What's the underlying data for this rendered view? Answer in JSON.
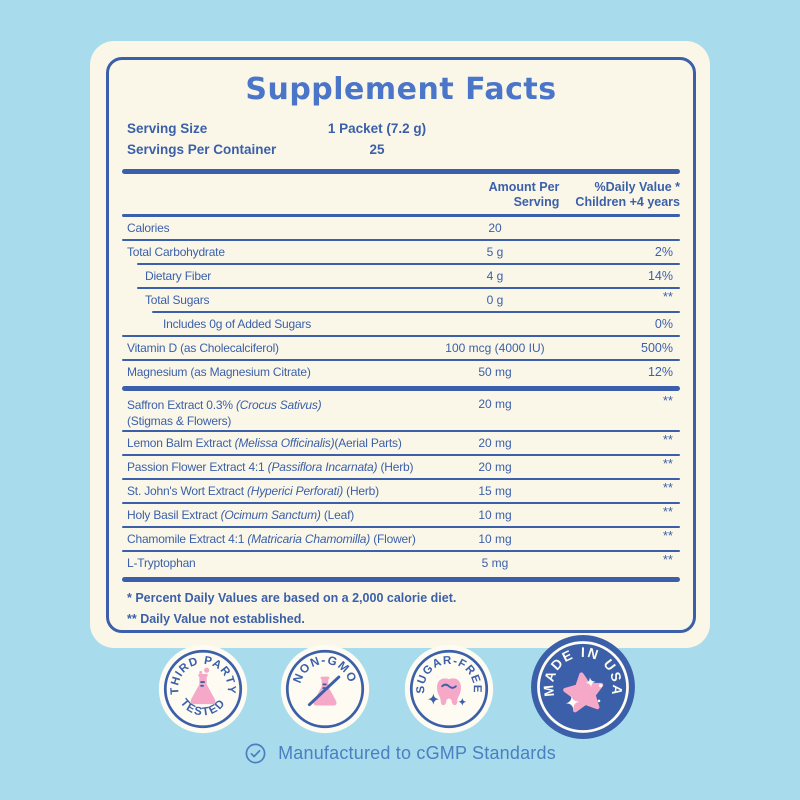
{
  "label": {
    "title": "Supplement Facts",
    "serving_rows": [
      {
        "label": "Serving Size",
        "value": "1 Packet (7.2 g)"
      },
      {
        "label": "Servings Per Container",
        "value": "25"
      }
    ],
    "columns": {
      "amount_header": "Amount Per\nServing",
      "dv_header": "%Daily Value *\nChildren +4 years"
    },
    "rows": [
      {
        "segments": [
          {
            "text": "Calories"
          }
        ],
        "amount": "20",
        "dv": "",
        "indent": 0
      },
      {
        "segments": [
          {
            "text": "Total Carbohydrate"
          }
        ],
        "amount": "5 g",
        "dv": "2%",
        "indent": 0
      },
      {
        "segments": [
          {
            "text": "Dietary Fiber"
          }
        ],
        "amount": "4 g",
        "dv": "14%",
        "indent": 1
      },
      {
        "segments": [
          {
            "text": "Total Sugars"
          }
        ],
        "amount": "0 g",
        "dv": "**",
        "indent": 1
      },
      {
        "segments": [
          {
            "text": "Includes 0g of Added Sugars"
          }
        ],
        "amount": "",
        "dv": "0%",
        "indent": 2
      },
      {
        "segments": [
          {
            "text": "Vitamin D (as Cholecalciferol)"
          }
        ],
        "amount": "100 mcg (4000 IU)",
        "dv": "500%",
        "indent": 0
      },
      {
        "segments": [
          {
            "text": "Magnesium  (as Magnesium Citrate)"
          }
        ],
        "amount": "50 mg",
        "dv": "12%",
        "indent": 0,
        "bar_after": true
      },
      {
        "segments": [
          {
            "text": "Saffron Extract 0.3% "
          },
          {
            "text": "(Crocus Sativus)",
            "italic": true
          }
        ],
        "line2": "(Stigmas & Flowers)",
        "amount": "20 mg",
        "dv": "**",
        "indent": 0
      },
      {
        "segments": [
          {
            "text": "Lemon Balm Extract "
          },
          {
            "text": "(Melissa Officinalis)",
            "italic": true
          },
          {
            "text": "(Aerial Parts)"
          }
        ],
        "amount": "20 mg",
        "dv": "**",
        "indent": 0
      },
      {
        "segments": [
          {
            "text": "Passion Flower Extract 4:1 "
          },
          {
            "text": "(Passiflora Incarnata)",
            "italic": true
          },
          {
            "text": " (Herb)"
          }
        ],
        "amount": "20 mg",
        "dv": "**",
        "indent": 0
      },
      {
        "segments": [
          {
            "text": "St. John's Wort Extract "
          },
          {
            "text": "(Hyperici Perforati)",
            "italic": true
          },
          {
            "text": " (Herb)"
          }
        ],
        "amount": "15 mg",
        "dv": "**",
        "indent": 0
      },
      {
        "segments": [
          {
            "text": "Holy Basil Extract "
          },
          {
            "text": "(Ocimum Sanctum)",
            "italic": true
          },
          {
            "text": " (Leaf)"
          }
        ],
        "amount": "10 mg",
        "dv": "**",
        "indent": 0
      },
      {
        "segments": [
          {
            "text": "Chamomile Extract 4:1 "
          },
          {
            "text": "(Matricaria Chamomilla)",
            "italic": true
          },
          {
            "text": " (Flower)"
          }
        ],
        "amount": "10 mg",
        "dv": "**",
        "indent": 0
      },
      {
        "segments": [
          {
            "text": "L-Tryptophan"
          }
        ],
        "amount": "5 mg",
        "dv": "**",
        "indent": 0,
        "bar_after": true
      }
    ],
    "footnotes": [
      "* Percent Daily Values are based on a 2,000 calorie diet.",
      "** Daily Value not established."
    ]
  },
  "badges": [
    {
      "name": "third-party-tested",
      "arc_top": "THIRD PARTY",
      "arc_bottom": "TESTED",
      "icon": "flask-icon",
      "style": "light"
    },
    {
      "name": "non-gmo",
      "arc_top": "NON-GMO",
      "icon": "flask-crossed-icon",
      "style": "light"
    },
    {
      "name": "sugar-free",
      "arc_top": "SUGAR-FREE",
      "icon": "tooth-icon",
      "style": "light"
    },
    {
      "name": "made-in-usa",
      "arc_top": "MADE IN USA",
      "icon": "star-icon",
      "style": "dark"
    }
  ],
  "footer": {
    "note": "Manufactured to cGMP Standards"
  },
  "colors": {
    "background": "#a8dcec",
    "card": "#faf7e9",
    "navy": "#3b5fa9",
    "title_blue": "#4a75c8",
    "pink": "#f5a8c8",
    "footer_blue": "#4a7fc1"
  }
}
